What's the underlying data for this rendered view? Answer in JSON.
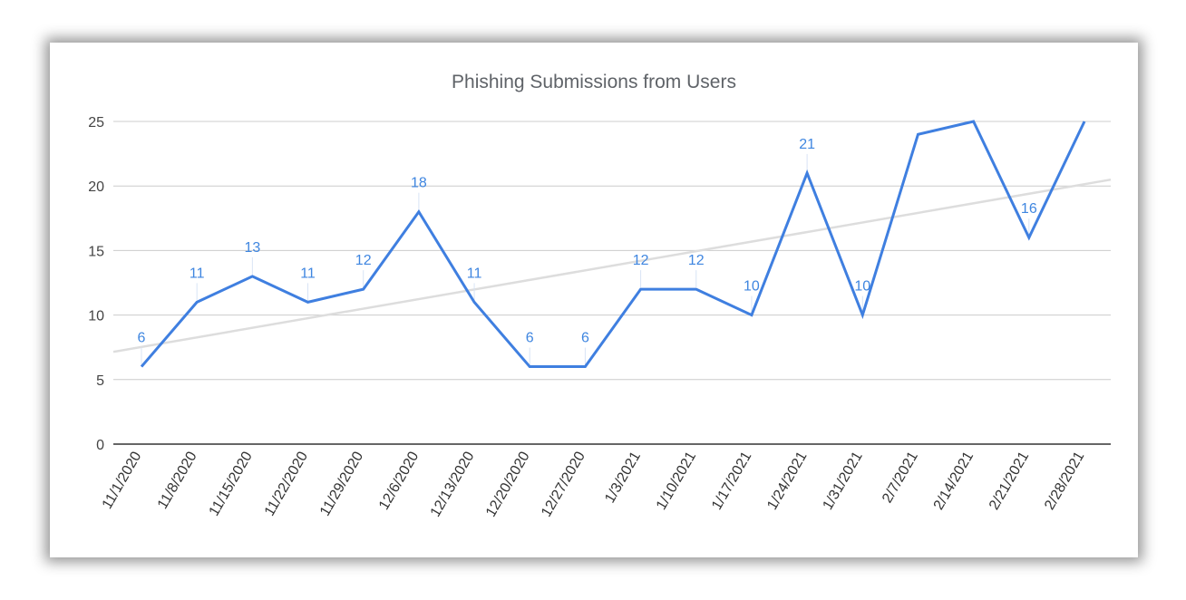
{
  "chart_data": {
    "type": "line",
    "title": "Phishing Submissions from Users",
    "xlabel": "",
    "ylabel": "",
    "categories": [
      "11/1/2020",
      "11/8/2020",
      "11/15/2020",
      "11/22/2020",
      "11/29/2020",
      "12/6/2020",
      "12/13/2020",
      "12/20/2020",
      "12/27/2020",
      "1/3/2021",
      "1/10/2021",
      "1/17/2021",
      "1/24/2021",
      "1/31/2021",
      "2/7/2021",
      "2/14/2021",
      "2/21/2021",
      "2/28/2021"
    ],
    "series": [
      {
        "values": [
          6,
          11,
          13,
          11,
          12,
          18,
          11,
          6,
          6,
          12,
          12,
          10,
          21,
          10,
          24,
          25,
          16,
          25
        ],
        "data_labels": [
          "6",
          "11",
          "13",
          "11",
          "12",
          "18",
          "11",
          "6",
          "6",
          "12",
          "12",
          "10",
          "21",
          "10",
          "",
          "",
          "16",
          ""
        ],
        "color": "#3f7fe0"
      }
    ],
    "trendline": {
      "type": "linear",
      "color": "#dddddd"
    },
    "ylim": [
      0,
      25
    ],
    "yticks": [
      0,
      5,
      10,
      15,
      20,
      25
    ],
    "grid": true,
    "legend": "none"
  }
}
